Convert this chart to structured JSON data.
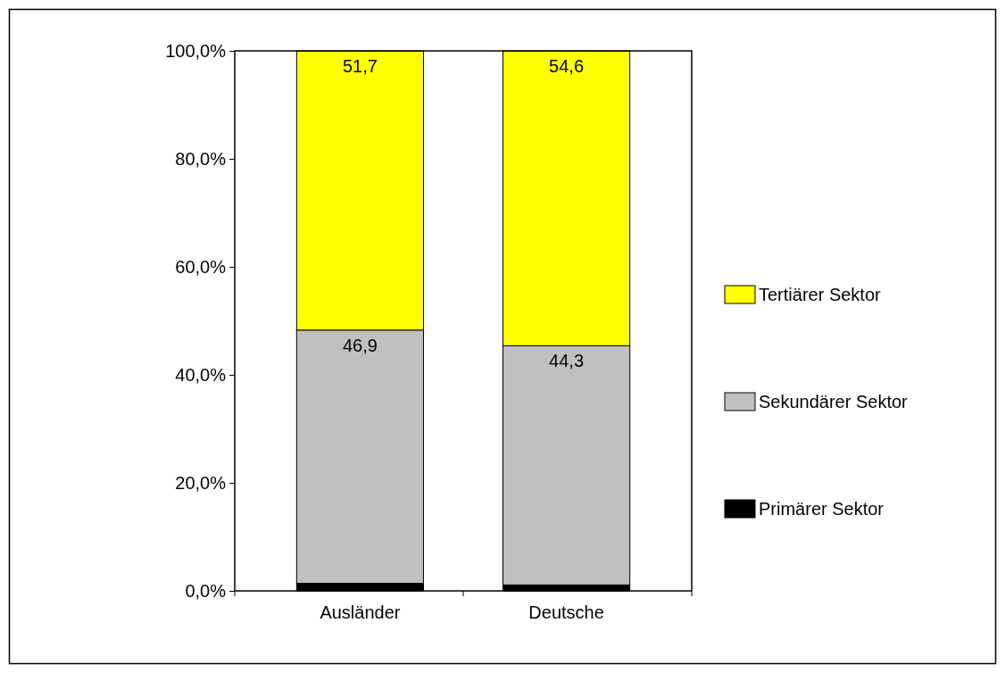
{
  "chart_data": {
    "type": "bar",
    "stacked": true,
    "categories": [
      "Ausländer",
      "Deutsche"
    ],
    "series": [
      {
        "name": "Primärer Sektor",
        "color": "#000000",
        "values": [
          1.4,
          1.1
        ]
      },
      {
        "name": "Sekundärer Sektor",
        "color": "#c0c0c0",
        "values": [
          46.9,
          44.3
        ],
        "value_labels": [
          "46,9",
          "44,3"
        ]
      },
      {
        "name": "Tertiärer Sektor",
        "color": "#ffff00",
        "values": [
          51.7,
          54.6
        ],
        "value_labels": [
          "51,7",
          "54,6"
        ]
      }
    ],
    "ylim": [
      0,
      100
    ],
    "yticks": [
      {
        "value": 0,
        "label": "0,0%"
      },
      {
        "value": 20,
        "label": "20,0%"
      },
      {
        "value": 40,
        "label": "40,0%"
      },
      {
        "value": 60,
        "label": "60,0%"
      },
      {
        "value": 80,
        "label": "80,0%"
      },
      {
        "value": 100,
        "label": "100,0%"
      }
    ],
    "grid": false,
    "legend": "right"
  }
}
